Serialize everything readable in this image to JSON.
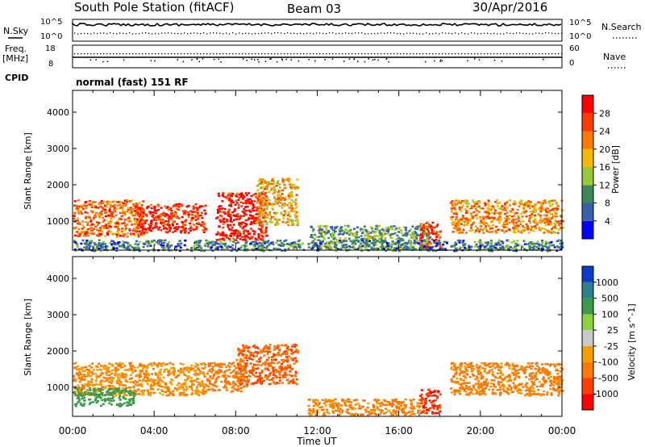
{
  "header": {
    "station": "South Pole Station (fitACF)",
    "beam": "Beam 03",
    "date": "30/Apr/2016"
  },
  "noise_panel": {
    "left_label": "N.Sky",
    "right_label": "N.Search",
    "left_ticks": [
      "10^5",
      "10^0"
    ],
    "right_ticks": [
      "10^5",
      "10^0"
    ]
  },
  "freq_panel": {
    "left_label_1": "Freq.",
    "left_label_2": "[MHz]",
    "right_label": "Nave",
    "left_ticks": [
      "18",
      "8"
    ],
    "right_ticks": [
      "60",
      "0"
    ]
  },
  "cpid": {
    "label": "CPID",
    "mode": "normal (fast) 151 RF"
  },
  "x_axis": {
    "title": "Time UT",
    "ticks": [
      "00:00",
      "04:00",
      "08:00",
      "12:00",
      "16:00",
      "20:00",
      "00:00"
    ]
  },
  "colors": {
    "power_scale": [
      "#0000ff",
      "#3a5faa",
      "#3c8a5a",
      "#98c838",
      "#f5b800",
      "#ff7800",
      "#ff3c00",
      "#ff0000"
    ],
    "velocity_scale": [
      "#0a3cc8",
      "#2e7f8f",
      "#3c9b4a",
      "#8cd23c",
      "#c8c8c8",
      "#f5a000",
      "#ff7800",
      "#ff4000",
      "#ff0000"
    ]
  },
  "chart_data": [
    {
      "type": "heatmap",
      "title": "",
      "xlabel": "Time UT",
      "ylabel": "Slant Range [km]",
      "xlim": [
        0,
        24
      ],
      "ylim": [
        200,
        4600
      ],
      "yticks": [
        "1000",
        "2000",
        "3000",
        "4000"
      ],
      "colorbar": {
        "label": "Power [dB]",
        "ticks": [
          "4",
          "8",
          "12",
          "16",
          "20",
          "24",
          "28"
        ],
        "range": [
          0,
          30
        ]
      },
      "series": [
        {
          "name": "",
          "x_range": [
            0,
            3.5
          ],
          "y_range": [
            600,
            1600
          ],
          "values": [
            22
          ]
        },
        {
          "name": "",
          "x_range": [
            3.0,
            6.5
          ],
          "y_range": [
            700,
            1500
          ],
          "values": [
            26
          ]
        },
        {
          "name": "",
          "x_range": [
            7.0,
            9.5
          ],
          "y_range": [
            500,
            1800
          ],
          "values": [
            28
          ]
        },
        {
          "name": "",
          "x_range": [
            9.0,
            11.0
          ],
          "y_range": [
            900,
            2200
          ],
          "values": [
            18
          ]
        },
        {
          "name": "",
          "x_range": [
            11.5,
            17.5
          ],
          "y_range": [
            250,
            900
          ],
          "values": [
            10
          ]
        },
        {
          "name": "",
          "x_range": [
            17.0,
            18.0
          ],
          "y_range": [
            300,
            1000
          ],
          "values": [
            26
          ]
        },
        {
          "name": "",
          "x_range": [
            18.5,
            24.0
          ],
          "y_range": [
            700,
            1600
          ],
          "values": [
            20
          ]
        },
        {
          "name": "",
          "x_range": [
            0,
            24
          ],
          "y_range": [
            200,
            500
          ],
          "values": [
            8
          ]
        }
      ]
    },
    {
      "type": "heatmap",
      "title": "",
      "xlabel": "Time UT",
      "ylabel": "Slant Range [km]",
      "xlim": [
        0,
        24
      ],
      "ylim": [
        200,
        4600
      ],
      "yticks": [
        "1000",
        "2000",
        "3000",
        "4000"
      ],
      "colorbar": {
        "label": "Velocity [m s^-1]",
        "ticks": [
          "1000",
          "500",
          "100",
          "25",
          "-25",
          "-100",
          "-500",
          "-1000"
        ],
        "range": [
          -1000,
          1000
        ]
      },
      "series": [
        {
          "name": "",
          "x_range": [
            0,
            6.5
          ],
          "y_range": [
            800,
            1700
          ],
          "values": [
            -100
          ]
        },
        {
          "name": "",
          "x_range": [
            6.5,
            8.5
          ],
          "y_range": [
            900,
            1700
          ],
          "values": [
            -300
          ]
        },
        {
          "name": "",
          "x_range": [
            8.0,
            11.0
          ],
          "y_range": [
            1100,
            2200
          ],
          "values": [
            -500
          ]
        },
        {
          "name": "",
          "x_range": [
            11.5,
            17.0
          ],
          "y_range": [
            250,
            700
          ],
          "values": [
            -150
          ]
        },
        {
          "name": "",
          "x_range": [
            17.0,
            18.0
          ],
          "y_range": [
            300,
            1000
          ],
          "values": [
            -800
          ]
        },
        {
          "name": "",
          "x_range": [
            18.5,
            24.0
          ],
          "y_range": [
            800,
            1700
          ],
          "values": [
            -150
          ]
        },
        {
          "name": "",
          "x_range": [
            0,
            3.0
          ],
          "y_range": [
            500,
            1000
          ],
          "values": [
            300
          ]
        }
      ]
    }
  ]
}
